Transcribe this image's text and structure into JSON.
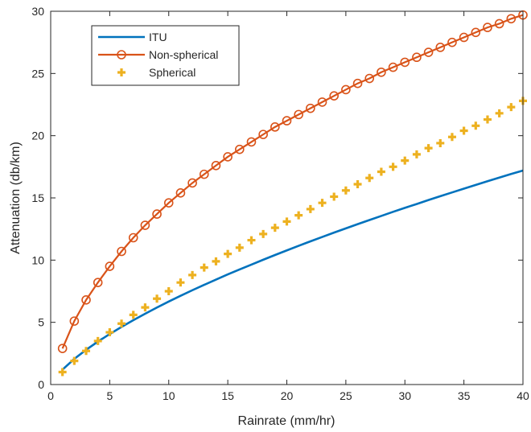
{
  "chart_data": {
    "type": "line",
    "xlabel": "Rainrate (mm/hr)",
    "ylabel": "Attenuation (db/km)",
    "xlim": [
      0,
      40
    ],
    "ylim": [
      0,
      30
    ],
    "xticks": [
      0,
      5,
      10,
      15,
      20,
      25,
      30,
      35,
      40
    ],
    "yticks": [
      0,
      5,
      10,
      15,
      20,
      25,
      30
    ],
    "grid": false,
    "legend": "top-left",
    "x": [
      1,
      2,
      3,
      4,
      5,
      6,
      7,
      8,
      9,
      10,
      11,
      12,
      13,
      14,
      15,
      16,
      17,
      18,
      19,
      20,
      21,
      22,
      23,
      24,
      25,
      26,
      27,
      28,
      29,
      30,
      31,
      32,
      33,
      34,
      35,
      36,
      37,
      38,
      39,
      40
    ],
    "series": [
      {
        "name": "ITU",
        "color": "#0072BD",
        "marker": "none",
        "values": [
          1.2,
          2.06,
          2.79,
          3.45,
          4.06,
          4.63,
          5.17,
          5.69,
          6.19,
          6.67,
          7.13,
          7.58,
          8.01,
          8.43,
          8.85,
          9.25,
          9.64,
          10.03,
          10.41,
          10.78,
          11.15,
          11.51,
          11.86,
          12.21,
          12.55,
          12.89,
          13.22,
          13.55,
          13.88,
          14.2,
          14.51,
          14.83,
          15.14,
          15.44,
          15.74,
          16.04,
          16.34,
          16.63,
          16.92,
          17.2
        ]
      },
      {
        "name": "Non-spherical",
        "color": "#D95319",
        "marker": "circle",
        "values": [
          2.9,
          5.1,
          6.8,
          8.2,
          9.5,
          10.7,
          11.8,
          12.8,
          13.7,
          14.6,
          15.4,
          16.2,
          16.9,
          17.6,
          18.3,
          18.9,
          19.5,
          20.1,
          20.7,
          21.2,
          21.7,
          22.2,
          22.7,
          23.2,
          23.7,
          24.2,
          24.6,
          25.1,
          25.5,
          25.9,
          26.3,
          26.7,
          27.1,
          27.5,
          27.9,
          28.3,
          28.7,
          29.0,
          29.4,
          29.7
        ]
      },
      {
        "name": "Spherical",
        "color": "#EDB120",
        "marker": "plus",
        "values": [
          1.0,
          1.9,
          2.7,
          3.5,
          4.2,
          4.9,
          5.6,
          6.2,
          6.9,
          7.5,
          8.2,
          8.8,
          9.4,
          9.9,
          10.5,
          11.0,
          11.6,
          12.1,
          12.6,
          13.1,
          13.6,
          14.1,
          14.6,
          15.1,
          15.6,
          16.1,
          16.6,
          17.1,
          17.5,
          18.0,
          18.5,
          19.0,
          19.4,
          19.9,
          20.4,
          20.8,
          21.3,
          21.8,
          22.3,
          22.8
        ]
      }
    ]
  }
}
